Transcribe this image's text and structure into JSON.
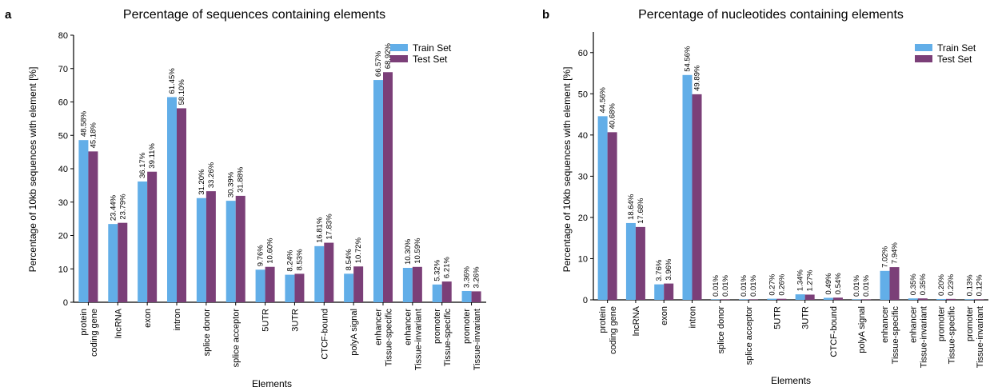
{
  "panels": [
    {
      "letter": "a"
    },
    {
      "letter": "b"
    }
  ],
  "colors": {
    "train": "#62aee8",
    "test": "#7b3f78",
    "axis": "#000000"
  },
  "chart_data": [
    {
      "type": "bar",
      "title": "Percentage of sequences containing elements",
      "xlabel": "Elements",
      "ylabel": "Percentage of 10kb sequences with element [%]",
      "ylim": [
        0,
        80
      ],
      "yticks": [
        0,
        10,
        20,
        30,
        40,
        50,
        60,
        70,
        80
      ],
      "grid": false,
      "legend_position": "top-right",
      "categories": [
        [
          "protein",
          "coding gene"
        ],
        [
          "lncRNA"
        ],
        [
          "exon"
        ],
        [
          "intron"
        ],
        [
          "splice donor"
        ],
        [
          "splice acceptor"
        ],
        [
          "5UTR"
        ],
        [
          "3UTR"
        ],
        [
          "CTCF-bound"
        ],
        [
          "polyA signal"
        ],
        [
          "enhancer",
          "Tissue-specific"
        ],
        [
          "enhancer",
          "Tissue-invariant"
        ],
        [
          "promoter",
          "Tissue-specific"
        ],
        [
          "promoter",
          "Tissue-invariant"
        ]
      ],
      "series": [
        {
          "name": "Train Set",
          "values": [
            48.58,
            23.44,
            36.17,
            61.45,
            31.2,
            30.39,
            9.76,
            8.24,
            16.81,
            8.54,
            66.57,
            10.3,
            5.32,
            3.36
          ],
          "labels": [
            "48.58%",
            "23.44%",
            "36.17%",
            "61.45%",
            "31.20%",
            "30.39%",
            "9.76%",
            "8.24%",
            "16.81%",
            "8.54%",
            "66.57%",
            "10.30%",
            "5.32%",
            "3.36%"
          ]
        },
        {
          "name": "Test Set",
          "values": [
            45.18,
            23.79,
            39.11,
            58.1,
            33.26,
            31.88,
            10.6,
            8.53,
            17.83,
            10.72,
            68.92,
            10.59,
            6.21,
            3.26
          ],
          "labels": [
            "45.18%",
            "23.79%",
            "39.11%",
            "58.10%",
            "33.26%",
            "31.88%",
            "10.60%",
            "8.53%",
            "17.83%",
            "10.72%",
            "68.92%",
            "10.59%",
            "6.21%",
            "3.26%"
          ]
        }
      ]
    },
    {
      "type": "bar",
      "title": "Percentage of nucleotides containing elements",
      "xlabel": "Elements",
      "ylabel": "Percentage of 10kb sequences with element [%]",
      "ylim": [
        0,
        65
      ],
      "yticks": [
        0,
        10,
        20,
        30,
        40,
        50,
        60
      ],
      "grid": false,
      "legend_position": "top-right",
      "categories": [
        [
          "protein",
          "coding gene"
        ],
        [
          "lncRNA"
        ],
        [
          "exon"
        ],
        [
          "intron"
        ],
        [
          "splice donor"
        ],
        [
          "splice acceptor"
        ],
        [
          "5UTR"
        ],
        [
          "3UTR"
        ],
        [
          "CTCF-bound"
        ],
        [
          "polyA signal"
        ],
        [
          "enhancer",
          "Tissue-specific"
        ],
        [
          "enhancer",
          "Tissue-invariant"
        ],
        [
          "promoter",
          "Tissue-specific"
        ],
        [
          "promoter",
          "Tissue-invariant"
        ]
      ],
      "series": [
        {
          "name": "Train Set",
          "values": [
            44.56,
            18.64,
            3.76,
            54.56,
            0.01,
            0.01,
            0.27,
            1.34,
            0.49,
            0.01,
            7.02,
            0.35,
            0.2,
            0.13
          ],
          "labels": [
            "44.56%",
            "18.64%",
            "3.76%",
            "54.56%",
            "0.01%",
            "0.01%",
            "0.27%",
            "1.34%",
            "0.49%",
            "0.01%",
            "7.02%",
            "0.35%",
            "0.20%",
            "0.13%"
          ]
        },
        {
          "name": "Test Set",
          "values": [
            40.68,
            17.68,
            3.96,
            49.89,
            0.01,
            0.01,
            0.26,
            1.27,
            0.54,
            0.01,
            7.94,
            0.35,
            0.23,
            0.12
          ],
          "labels": [
            "40.68%",
            "17.68%",
            "3.96%",
            "49.89%",
            "0.01%",
            "0.01%",
            "0.26%",
            "1.27%",
            "0.54%",
            "0.01%",
            "7.94%",
            "0.35%",
            "0.23%",
            "0.12%"
          ]
        }
      ]
    }
  ]
}
